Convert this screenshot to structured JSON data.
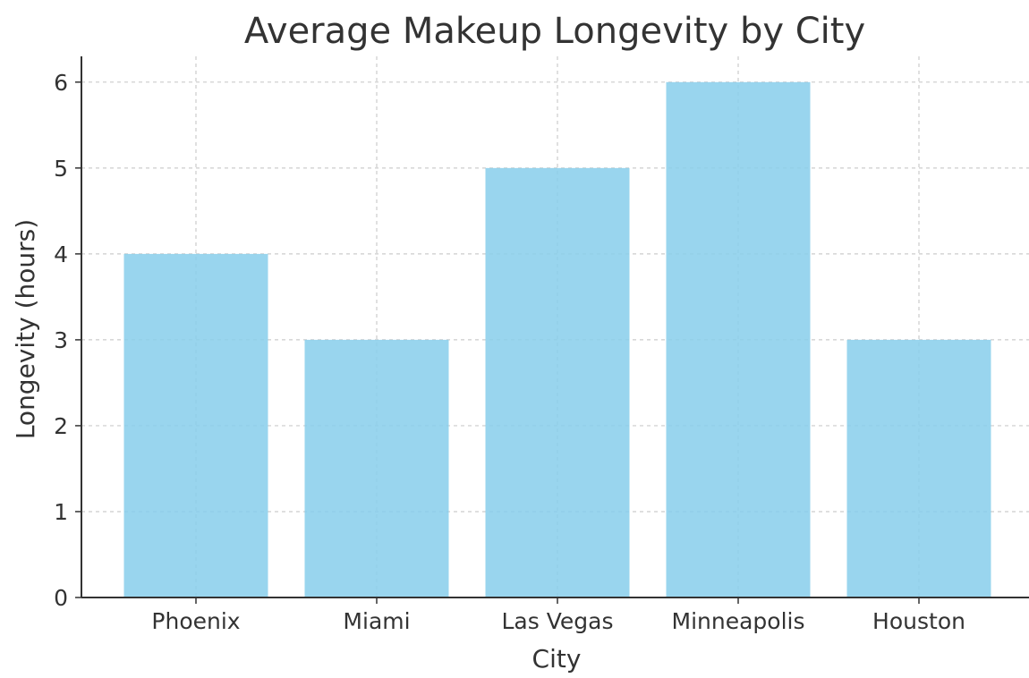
{
  "chart_data": {
    "type": "bar",
    "title": "Average Makeup Longevity by City",
    "xlabel": "City",
    "ylabel": "Longevity (hours)",
    "categories": [
      "Phoenix",
      "Miami",
      "Las Vegas",
      "Minneapolis",
      "Houston"
    ],
    "values": [
      4,
      3,
      5,
      6,
      3
    ],
    "ylim": [
      0,
      6.3
    ],
    "yticks": [
      0,
      1,
      2,
      3,
      4,
      5,
      6
    ],
    "grid": true,
    "bar_color": "#87ceeb"
  }
}
